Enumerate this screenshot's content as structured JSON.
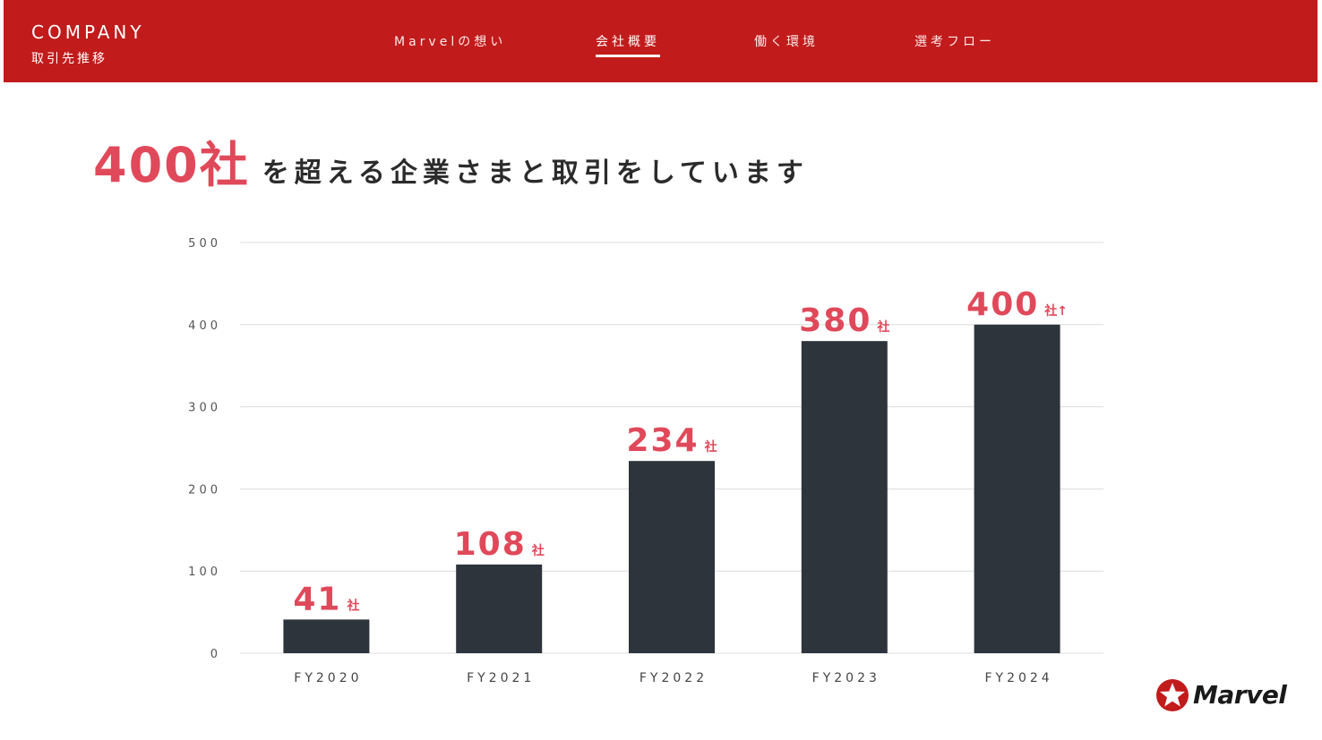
{
  "header": {
    "title": "COMPANY",
    "subtitle": "取引先推移",
    "nav": [
      {
        "label": "Marvelの想い",
        "active": false
      },
      {
        "label": "会社概要",
        "active": true
      },
      {
        "label": "働く環境",
        "active": false
      },
      {
        "label": "選考フロー",
        "active": false
      }
    ]
  },
  "headline": {
    "emphasis": "400社",
    "rest": "を超える企業さまと取引をしています"
  },
  "colors": {
    "brand_red": "#c21b1b",
    "accent": "#e0495a",
    "bar": "#2e343b"
  },
  "chart_data": {
    "type": "bar",
    "categories": [
      "FY2020",
      "FY2021",
      "FY2022",
      "FY2023",
      "FY2024"
    ],
    "values": [
      41,
      108,
      234,
      380,
      400
    ],
    "data_labels": [
      {
        "value": "41",
        "unit": "社"
      },
      {
        "value": "108",
        "unit": "社"
      },
      {
        "value": "234",
        "unit": "社"
      },
      {
        "value": "380",
        "unit": "社"
      },
      {
        "value": "400",
        "unit": "社↑"
      }
    ],
    "yticks": [
      0,
      100,
      200,
      300,
      400,
      500
    ],
    "ylim": [
      0,
      500
    ],
    "grid": true
  },
  "logo": {
    "text": "Marvel",
    "icon": "star-badge-icon"
  }
}
